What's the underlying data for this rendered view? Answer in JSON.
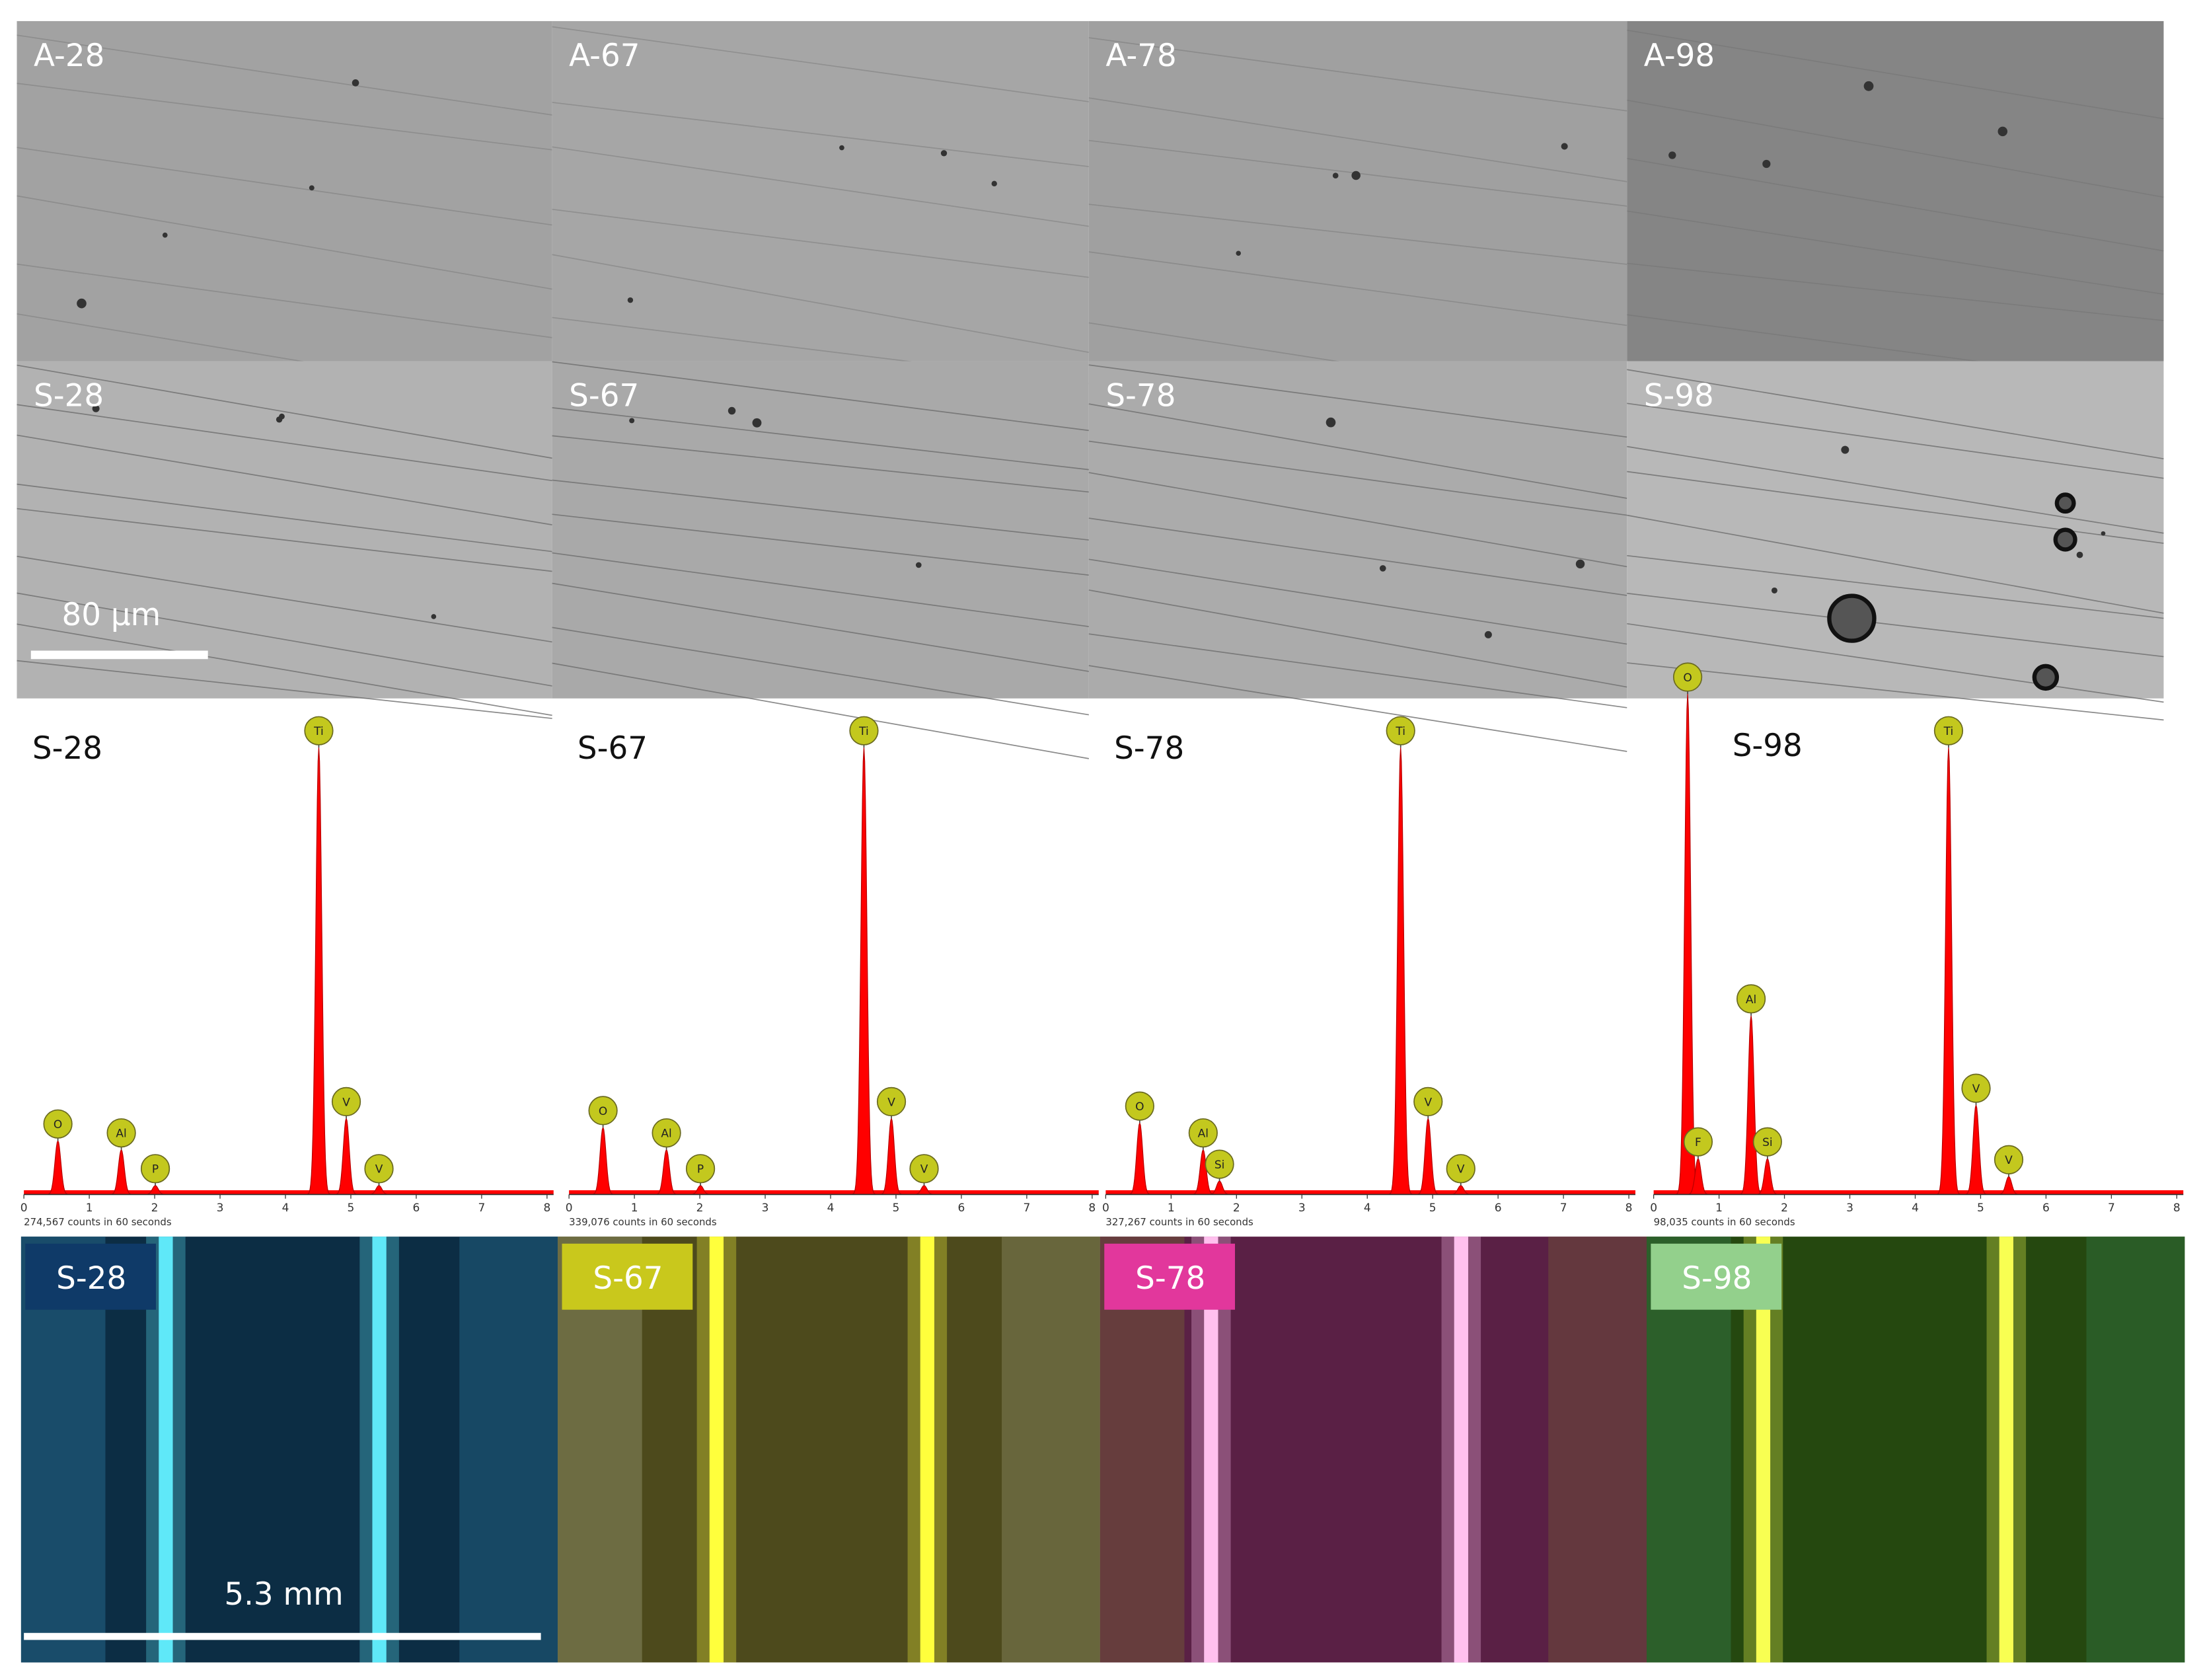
{
  "sem": {
    "rows": [
      {
        "panels": [
          "A-28",
          "A-67",
          "A-78",
          "A-98"
        ]
      },
      {
        "panels": [
          "S-28",
          "S-67",
          "S-78",
          "S-98"
        ]
      }
    ],
    "scale_bar": "80 μm"
  },
  "spectra": {
    "color": "#ff0000",
    "xlim": [
      0,
      8.1
    ],
    "xticks": [
      0,
      1,
      2,
      3,
      4,
      5,
      6,
      7,
      8
    ],
    "panels": [
      {
        "label": "S-28",
        "counts": "274,567 counts in 60 seconds",
        "peaks": [
          {
            "element": "O",
            "energy": 0.52,
            "height": 0.12
          },
          {
            "element": "Al",
            "energy": 1.49,
            "height": 0.1
          },
          {
            "element": "P",
            "energy": 2.01,
            "height": 0.02
          },
          {
            "element": "Ti",
            "energy": 4.51,
            "height": 1
          },
          {
            "element": "V",
            "energy": 4.93,
            "height": 0.17
          },
          {
            "element": "V",
            "energy": 5.43,
            "height": 0.02
          }
        ]
      },
      {
        "label": "S-67",
        "counts": "339,076 counts in 60 seconds",
        "peaks": [
          {
            "element": "O",
            "energy": 0.52,
            "height": 0.15
          },
          {
            "element": "Al",
            "energy": 1.49,
            "height": 0.1
          },
          {
            "element": "P",
            "energy": 2.01,
            "height": 0.02
          },
          {
            "element": "Ti",
            "energy": 4.51,
            "height": 1
          },
          {
            "element": "V",
            "energy": 4.93,
            "height": 0.17
          },
          {
            "element": "V",
            "energy": 5.43,
            "height": 0.02
          }
        ]
      },
      {
        "label": "S-78",
        "counts": "327,267 counts in 60 seconds",
        "peaks": [
          {
            "element": "O",
            "energy": 0.52,
            "height": 0.16
          },
          {
            "element": "Al",
            "energy": 1.49,
            "height": 0.1
          },
          {
            "element": "Si",
            "energy": 1.74,
            "height": 0.03
          },
          {
            "element": "Ti",
            "energy": 4.51,
            "height": 1
          },
          {
            "element": "V",
            "energy": 4.93,
            "height": 0.17
          },
          {
            "element": "V",
            "energy": 5.43,
            "height": 0.02
          }
        ]
      },
      {
        "label": "S-98",
        "counts": "98,035 counts in 60 seconds",
        "peaks": [
          {
            "element": "O",
            "energy": 0.52,
            "height": 1.12
          },
          {
            "element": "F",
            "energy": 0.68,
            "height": 0.08
          },
          {
            "element": "Al",
            "energy": 1.49,
            "height": 0.4
          },
          {
            "element": "Si",
            "energy": 1.74,
            "height": 0.08
          },
          {
            "element": "Ti",
            "energy": 4.51,
            "height": 1
          },
          {
            "element": "V",
            "energy": 4.93,
            "height": 0.2
          },
          {
            "element": "V",
            "energy": 5.43,
            "height": 0.04
          }
        ]
      }
    ]
  },
  "photos": {
    "labels": [
      "S-28",
      "S-67",
      "S-78",
      "S-98"
    ],
    "scale_bar": "5.3 mm"
  }
}
